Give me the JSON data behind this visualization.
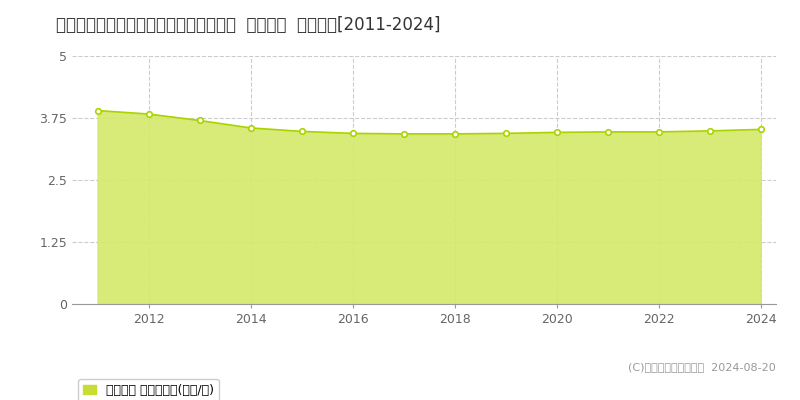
{
  "title": "鳥取県米子市富益町字新開八８８番１外  地価公示  地価推移[2011-2024]",
  "years": [
    2011,
    2012,
    2013,
    2014,
    2015,
    2016,
    2017,
    2018,
    2019,
    2020,
    2021,
    2022,
    2023,
    2024
  ],
  "values": [
    3.9,
    3.83,
    3.7,
    3.55,
    3.48,
    3.44,
    3.43,
    3.43,
    3.44,
    3.46,
    3.47,
    3.47,
    3.49,
    3.52
  ],
  "ylim": [
    0,
    5
  ],
  "yticks": [
    0,
    1.25,
    2.5,
    3.75,
    5
  ],
  "line_color": "#aad400",
  "fill_color": "#d4e96b",
  "fill_alpha": 0.9,
  "marker_color": "white",
  "marker_edge_color": "#aad400",
  "bg_color": "#ffffff",
  "grid_color": "#cccccc",
  "legend_label": "地価公示 平均坪単価(万円/坪)",
  "legend_box_color": "#c8dc32",
  "copyright_text": "(C)土地価格ドットコム  2024-08-20",
  "title_fontsize": 12,
  "axis_fontsize": 9,
  "legend_fontsize": 9
}
